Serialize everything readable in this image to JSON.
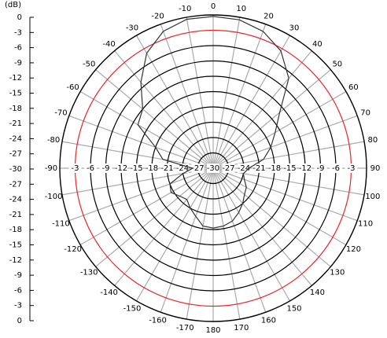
{
  "chart_data": {
    "type": "polar",
    "left_scale": {
      "label": "(dB)",
      "ticks": [
        0,
        -3,
        -6,
        -9,
        -12,
        -15,
        -18,
        -21,
        -24,
        -27,
        -30,
        -27,
        -24,
        -21,
        -18,
        -15,
        -12,
        -9,
        -6,
        -3,
        0
      ]
    },
    "rlim": [
      -30,
      0
    ],
    "rticks": [
      -30,
      -27,
      -24,
      -21,
      -18,
      -15,
      -12,
      -9,
      -6,
      -3
    ],
    "ring_highlight": {
      "value": -3,
      "color": "#e8262a"
    },
    "thetaticks": [
      0,
      10,
      20,
      30,
      40,
      50,
      60,
      70,
      80,
      90,
      100,
      110,
      120,
      130,
      140,
      150,
      160,
      170,
      180,
      -170,
      -160,
      -150,
      -140,
      -130,
      -120,
      -110,
      -100,
      -90,
      -80,
      -70,
      -60,
      -50,
      -40,
      -30,
      -20,
      -10
    ],
    "theta": [
      0,
      10,
      20,
      30,
      40,
      50,
      60,
      70,
      80,
      90,
      100,
      110,
      120,
      130,
      140,
      150,
      160,
      170,
      180,
      -170,
      -160,
      -150,
      -140,
      -130,
      -120,
      -110,
      -100,
      -90,
      -80,
      -70,
      -60,
      -50,
      -40,
      -30,
      -20,
      -10
    ],
    "values": [
      -0.3,
      -0.5,
      -1.5,
      -3.5,
      -7,
      -13,
      -16,
      -18,
      -20,
      -23,
      -24,
      -23.5,
      -22.5,
      -22,
      -21,
      -20,
      -19,
      -18.5,
      -18.3,
      -18.5,
      -20,
      -21,
      -22,
      -21.5,
      -20.5,
      -21,
      -24,
      -26,
      -20,
      -18,
      -13,
      -12,
      -8,
      -4,
      -1.5,
      -0.4
    ],
    "color": "#333333"
  }
}
